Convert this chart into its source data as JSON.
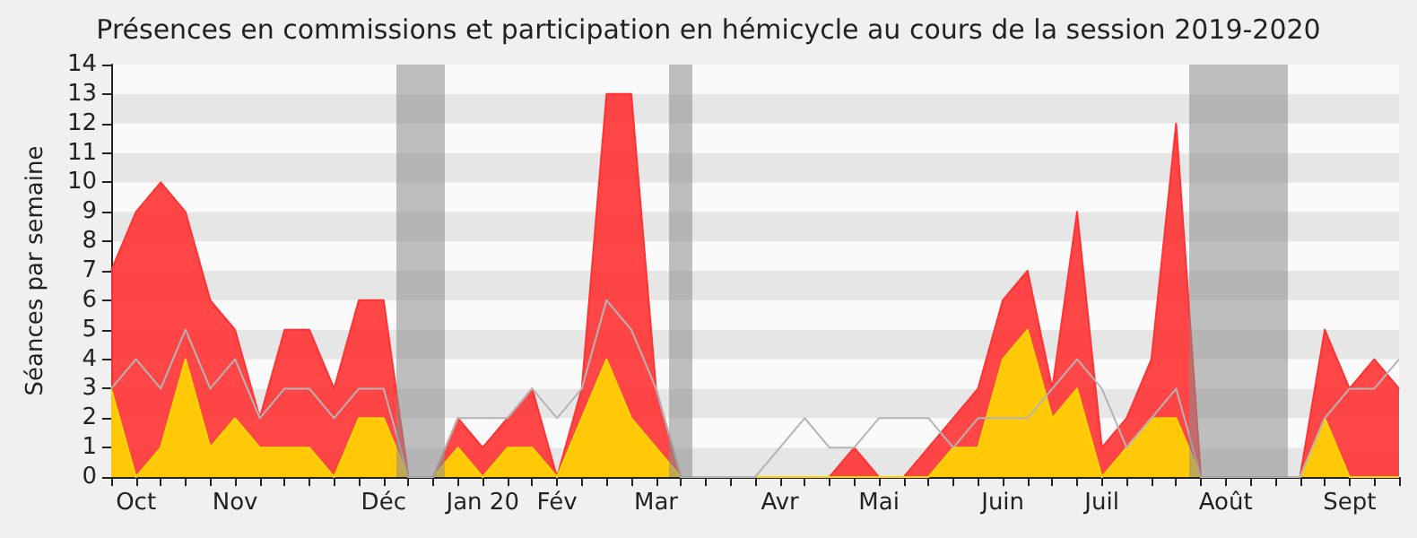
{
  "chart_data": {
    "type": "area",
    "title": "Présences en commissions et participation en hémicycle au cours de la session 2019-2020",
    "ylabel": "Séances par semaine",
    "categories": [
      null,
      "Oct",
      null,
      null,
      null,
      "Nov",
      null,
      null,
      null,
      null,
      null,
      "Déc",
      null,
      null,
      null,
      "Jan 20",
      null,
      null,
      "Fév",
      null,
      null,
      null,
      "Mar",
      null,
      null,
      null,
      null,
      "Avr",
      null,
      null,
      null,
      "Mai",
      null,
      null,
      null,
      null,
      "Juin",
      null,
      null,
      null,
      "Juil",
      null,
      null,
      null,
      null,
      "Août",
      null,
      null,
      null,
      null,
      "Sept",
      null,
      null
    ],
    "series": [
      {
        "color": "#ff3333",
        "values": [
          7,
          9,
          10,
          9,
          6,
          5,
          2,
          5,
          5,
          3,
          6,
          6,
          0,
          0,
          2,
          1,
          2,
          3,
          0,
          3,
          13,
          13,
          3,
          0,
          0,
          0,
          0,
          0,
          0,
          0,
          1,
          0,
          0,
          1,
          2,
          3,
          6,
          7,
          3,
          9,
          1,
          2,
          4,
          12,
          0,
          0,
          0,
          0,
          0,
          5,
          3,
          4,
          3
        ]
      },
      {
        "color": "#ffd700",
        "values": [
          3,
          0,
          1,
          4,
          1,
          2,
          1,
          1,
          1,
          0,
          2,
          2,
          0,
          0,
          1,
          0,
          1,
          1,
          0,
          2,
          4,
          2,
          1,
          0,
          0,
          0,
          0,
          0,
          0,
          0,
          0,
          0,
          0,
          0,
          1,
          1,
          4,
          5,
          2,
          3,
          0,
          1,
          2,
          2,
          0,
          0,
          0,
          0,
          0,
          2,
          0,
          0,
          0
        ]
      },
      {
        "type": "line",
        "color": "#b4b4b4",
        "values": [
          3,
          4,
          3,
          5,
          3,
          4,
          2,
          3,
          3,
          2,
          3,
          3,
          0,
          0,
          2,
          2,
          2,
          3,
          2,
          3,
          6,
          5,
          3,
          0,
          0,
          0,
          0,
          1,
          2,
          1,
          1,
          2,
          2,
          2,
          1,
          2,
          2,
          2,
          3,
          4,
          3,
          1,
          2,
          3,
          0,
          0,
          0,
          0,
          0,
          2,
          3,
          3,
          4
        ]
      }
    ],
    "ylim": [
      0,
      14
    ],
    "yticks": [
      0,
      1,
      2,
      3,
      4,
      5,
      6,
      7,
      8,
      9,
      10,
      11,
      12,
      13,
      14
    ],
    "marker": "none",
    "line_style": "solid"
  }
}
